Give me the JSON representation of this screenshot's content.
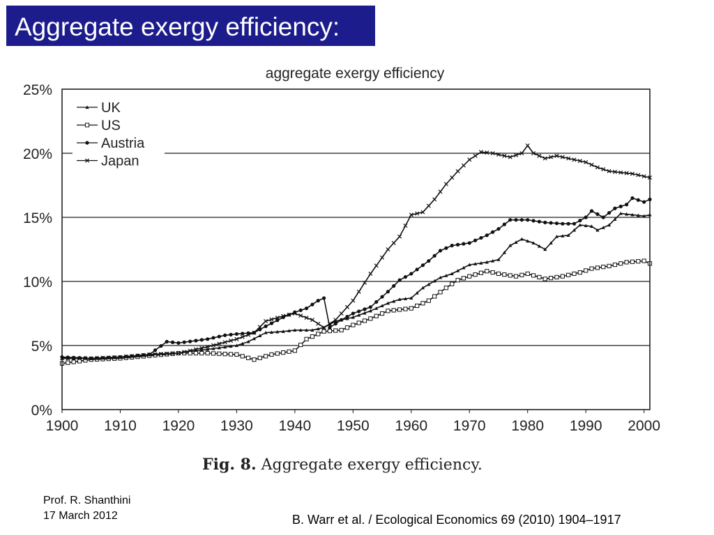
{
  "slide": {
    "title": "Aggregate exergy efficiency:",
    "fig_label": "Fig. 8.",
    "fig_text": "Aggregate exergy efficiency.",
    "author": "Prof. R. Shanthini",
    "date": "17 March 2012",
    "citation": "B. Warr et al. / Ecological Economics 69 (2010) 1904–1917"
  },
  "chart_data": {
    "type": "line",
    "title": "aggregate exergy efficiency",
    "xlabel": "",
    "ylabel": "",
    "xlim": [
      1900,
      2001
    ],
    "ylim": [
      0,
      25
    ],
    "xticks": [
      1900,
      1910,
      1920,
      1930,
      1940,
      1950,
      1960,
      1970,
      1980,
      1990,
      2000
    ],
    "yticks": [
      0,
      5,
      10,
      15,
      20,
      25
    ],
    "ytick_labels": [
      "0%",
      "5%",
      "10%",
      "15%",
      "20%",
      "25%"
    ],
    "grid": "horizontal",
    "legend_position": "top-left",
    "series": [
      {
        "name": "UK",
        "marker": "triangle",
        "points": [
          [
            1900,
            4.0
          ],
          [
            1905,
            4.0
          ],
          [
            1910,
            4.1
          ],
          [
            1915,
            4.3
          ],
          [
            1918,
            4.3
          ],
          [
            1920,
            4.4
          ],
          [
            1925,
            4.7
          ],
          [
            1930,
            5.0
          ],
          [
            1932,
            5.3
          ],
          [
            1935,
            6.0
          ],
          [
            1938,
            6.1
          ],
          [
            1940,
            6.2
          ],
          [
            1943,
            6.2
          ],
          [
            1945,
            6.4
          ],
          [
            1947,
            6.9
          ],
          [
            1950,
            7.2
          ],
          [
            1953,
            7.7
          ],
          [
            1956,
            8.3
          ],
          [
            1958,
            8.6
          ],
          [
            1960,
            8.7
          ],
          [
            1962,
            9.5
          ],
          [
            1965,
            10.3
          ],
          [
            1967,
            10.6
          ],
          [
            1970,
            11.3
          ],
          [
            1973,
            11.5
          ],
          [
            1975,
            11.7
          ],
          [
            1977,
            12.8
          ],
          [
            1979,
            13.3
          ],
          [
            1981,
            13.0
          ],
          [
            1983,
            12.5
          ],
          [
            1985,
            13.5
          ],
          [
            1987,
            13.6
          ],
          [
            1989,
            14.4
          ],
          [
            1991,
            14.3
          ],
          [
            1992,
            14.0
          ],
          [
            1994,
            14.4
          ],
          [
            1996,
            15.3
          ],
          [
            1998,
            15.2
          ],
          [
            2000,
            15.1
          ],
          [
            2001,
            15.2
          ]
        ]
      },
      {
        "name": "US",
        "marker": "square",
        "points": [
          [
            1900,
            3.6
          ],
          [
            1905,
            3.9
          ],
          [
            1910,
            4.0
          ],
          [
            1915,
            4.2
          ],
          [
            1920,
            4.4
          ],
          [
            1925,
            4.4
          ],
          [
            1930,
            4.3
          ],
          [
            1933,
            3.9
          ],
          [
            1936,
            4.3
          ],
          [
            1940,
            4.6
          ],
          [
            1942,
            5.5
          ],
          [
            1945,
            6.1
          ],
          [
            1948,
            6.2
          ],
          [
            1950,
            6.6
          ],
          [
            1953,
            7.1
          ],
          [
            1956,
            7.7
          ],
          [
            1960,
            7.9
          ],
          [
            1963,
            8.5
          ],
          [
            1966,
            9.5
          ],
          [
            1968,
            10.1
          ],
          [
            1970,
            10.4
          ],
          [
            1973,
            10.8
          ],
          [
            1975,
            10.6
          ],
          [
            1978,
            10.4
          ],
          [
            1980,
            10.6
          ],
          [
            1983,
            10.2
          ],
          [
            1986,
            10.4
          ],
          [
            1989,
            10.7
          ],
          [
            1991,
            11.0
          ],
          [
            1994,
            11.2
          ],
          [
            1997,
            11.5
          ],
          [
            2000,
            11.6
          ],
          [
            2001,
            11.4
          ]
        ]
      },
      {
        "name": "Austria",
        "marker": "circle",
        "points": [
          [
            1900,
            4.1
          ],
          [
            1905,
            4.0
          ],
          [
            1910,
            4.1
          ],
          [
            1915,
            4.3
          ],
          [
            1918,
            5.3
          ],
          [
            1920,
            5.2
          ],
          [
            1925,
            5.5
          ],
          [
            1928,
            5.8
          ],
          [
            1930,
            5.9
          ],
          [
            1933,
            6.0
          ],
          [
            1935,
            6.5
          ],
          [
            1938,
            7.2
          ],
          [
            1940,
            7.6
          ],
          [
            1942,
            7.9
          ],
          [
            1944,
            8.5
          ],
          [
            1945,
            8.7
          ],
          [
            1946,
            6.4
          ],
          [
            1948,
            7.0
          ],
          [
            1950,
            7.5
          ],
          [
            1953,
            8.0
          ],
          [
            1956,
            9.2
          ],
          [
            1958,
            10.1
          ],
          [
            1960,
            10.6
          ],
          [
            1963,
            11.6
          ],
          [
            1965,
            12.4
          ],
          [
            1967,
            12.8
          ],
          [
            1970,
            13.0
          ],
          [
            1973,
            13.6
          ],
          [
            1975,
            14.1
          ],
          [
            1977,
            14.8
          ],
          [
            1980,
            14.8
          ],
          [
            1983,
            14.6
          ],
          [
            1986,
            14.5
          ],
          [
            1988,
            14.5
          ],
          [
            1990,
            15.0
          ],
          [
            1991,
            15.5
          ],
          [
            1993,
            15.0
          ],
          [
            1995,
            15.7
          ],
          [
            1997,
            16.0
          ],
          [
            1998,
            16.5
          ],
          [
            2000,
            16.2
          ],
          [
            2001,
            16.4
          ]
        ]
      },
      {
        "name": "Japan",
        "marker": "x",
        "points": [
          [
            1900,
            4.0
          ],
          [
            1905,
            4.0
          ],
          [
            1910,
            4.1
          ],
          [
            1915,
            4.3
          ],
          [
            1920,
            4.4
          ],
          [
            1925,
            4.9
          ],
          [
            1930,
            5.5
          ],
          [
            1933,
            6.0
          ],
          [
            1935,
            6.9
          ],
          [
            1938,
            7.3
          ],
          [
            1940,
            7.5
          ],
          [
            1943,
            7.0
          ],
          [
            1945,
            6.4
          ],
          [
            1947,
            7.0
          ],
          [
            1950,
            8.5
          ],
          [
            1953,
            10.6
          ],
          [
            1956,
            12.5
          ],
          [
            1958,
            13.5
          ],
          [
            1960,
            15.2
          ],
          [
            1962,
            15.4
          ],
          [
            1964,
            16.4
          ],
          [
            1966,
            17.6
          ],
          [
            1968,
            18.6
          ],
          [
            1970,
            19.5
          ],
          [
            1972,
            20.1
          ],
          [
            1974,
            20.0
          ],
          [
            1977,
            19.7
          ],
          [
            1979,
            20.0
          ],
          [
            1980,
            20.6
          ],
          [
            1981,
            20.0
          ],
          [
            1983,
            19.6
          ],
          [
            1985,
            19.8
          ],
          [
            1987,
            19.6
          ],
          [
            1990,
            19.3
          ],
          [
            1992,
            18.9
          ],
          [
            1994,
            18.6
          ],
          [
            1996,
            18.5
          ],
          [
            1998,
            18.4
          ],
          [
            2000,
            18.2
          ],
          [
            2001,
            18.1
          ]
        ]
      }
    ],
    "colors": {
      "line": "#111111",
      "grid": "#222222",
      "text": "#222222"
    }
  }
}
